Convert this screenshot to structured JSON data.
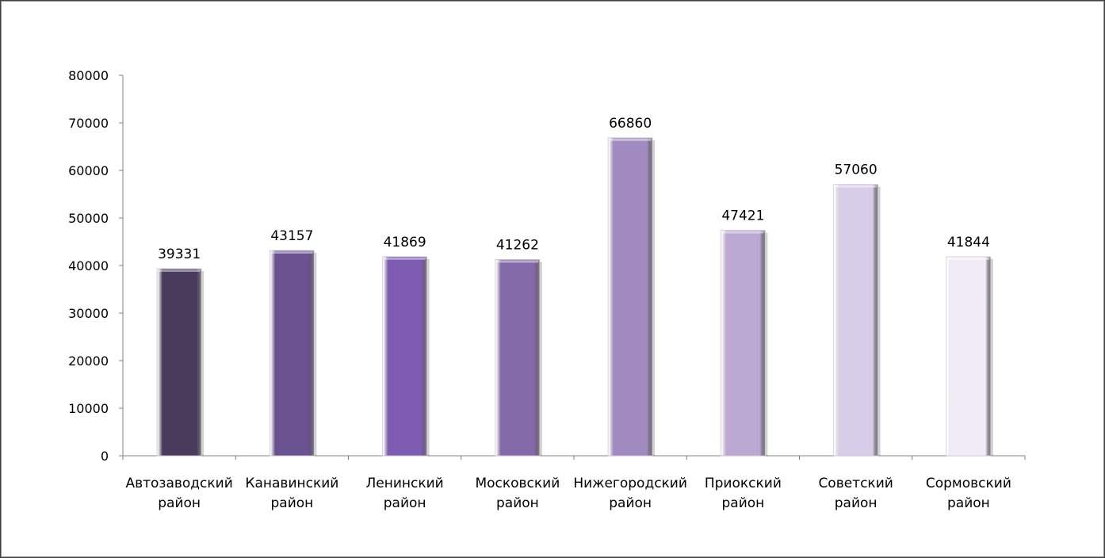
{
  "chart_data": {
    "type": "bar",
    "title": "",
    "xlabel": "",
    "ylabel": "",
    "categories": [
      [
        "Автозаводский",
        "район"
      ],
      [
        "Канавинский",
        "район"
      ],
      [
        "Ленинский",
        "район"
      ],
      [
        "Московский",
        "район"
      ],
      [
        "Нижегородский",
        "район"
      ],
      [
        "Приокский",
        "район"
      ],
      [
        "Советский",
        "район"
      ],
      [
        "Сормовский",
        "район"
      ]
    ],
    "values": [
      39331,
      43157,
      41869,
      41262,
      66860,
      47421,
      57060,
      41844
    ],
    "data_labels": [
      "39331",
      "43157",
      "41869",
      "41262",
      "66860",
      "47421",
      "57060",
      "41844"
    ],
    "ylim": [
      0,
      80000
    ],
    "yticks": [
      "0",
      "10000",
      "20000",
      "30000",
      "40000",
      "50000",
      "60000",
      "70000",
      "80000"
    ],
    "grid": false,
    "legend": "none",
    "bar_colors": [
      "#4a3a5c",
      "#6a5290",
      "#7d5bb0",
      "#8469a8",
      "#a08ac0",
      "#bca9d3",
      "#d8cde8",
      "#f0ecf7"
    ]
  }
}
